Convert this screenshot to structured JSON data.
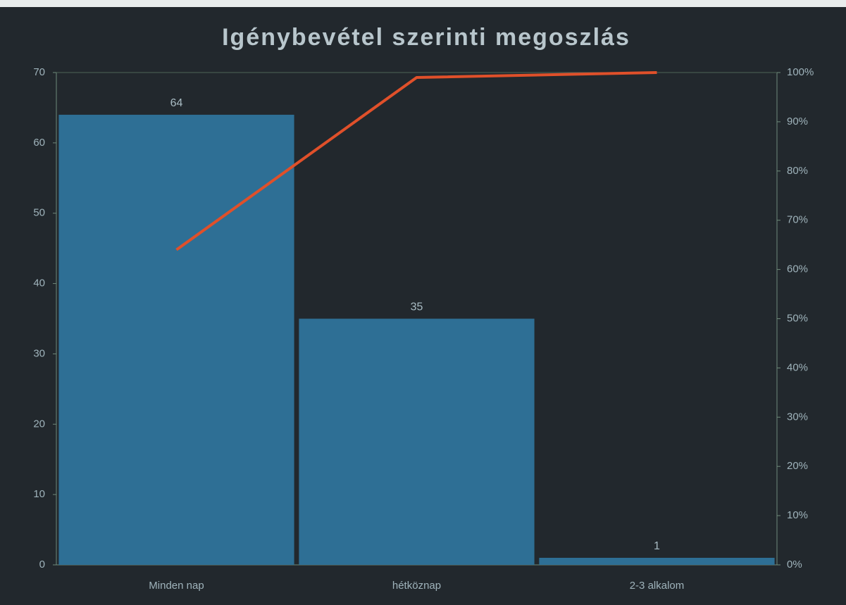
{
  "chart_data": {
    "type": "pareto",
    "title": "Igénybevétel szerinti megoszlás",
    "categories": [
      "Minden nap",
      "hétköznap",
      "2-3 alkalom"
    ],
    "series": [
      {
        "type": "bar",
        "color": "#2e6f95",
        "values": [
          64,
          35,
          1
        ]
      },
      {
        "type": "line",
        "axis": "y2",
        "color": "#e0502a",
        "values": [
          64,
          99,
          100
        ]
      }
    ],
    "ylim": [
      0,
      70
    ],
    "yticks": [
      0,
      10,
      20,
      30,
      40,
      50,
      60,
      70
    ],
    "y2lim": [
      0,
      100
    ],
    "y2ticks": [
      {
        "value": 0,
        "label": "0%"
      },
      {
        "value": 10,
        "label": "10%"
      },
      {
        "value": 20,
        "label": "20%"
      },
      {
        "value": 30,
        "label": "30%"
      },
      {
        "value": 40,
        "label": "40%"
      },
      {
        "value": 50,
        "label": "50%"
      },
      {
        "value": 60,
        "label": "60%"
      },
      {
        "value": 70,
        "label": "70%"
      },
      {
        "value": 80,
        "label": "80%"
      },
      {
        "value": 90,
        "label": "90%"
      },
      {
        "value": 100,
        "label": "100%"
      }
    ]
  }
}
